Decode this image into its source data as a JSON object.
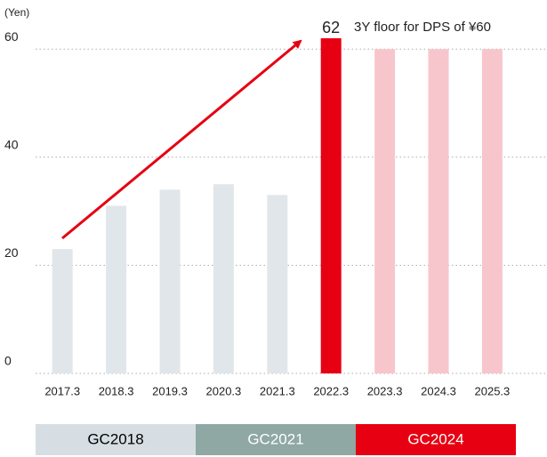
{
  "chart_data": {
    "type": "bar",
    "y_label": "(Yen)",
    "annotation": "3Y floor for DPS of ¥60",
    "categories": [
      "2017.3",
      "2018.3",
      "2019.3",
      "2020.3",
      "2021.3",
      "2022.3",
      "2023.3",
      "2024.3",
      "2025.3"
    ],
    "values": [
      23,
      31,
      34,
      35,
      33,
      62,
      60,
      60,
      60
    ],
    "colors": [
      "#e1e6ea",
      "#e1e6ea",
      "#e1e6ea",
      "#e1e6ea",
      "#e1e6ea",
      "#e60012",
      "#f7c6cc",
      "#f7c6cc",
      "#f7c6cc"
    ],
    "labeled_bar": 5,
    "ylim": [
      0,
      62.5
    ],
    "yticks": [
      0,
      20,
      40,
      60
    ],
    "grid": true,
    "phases": [
      {
        "label": "GC2018",
        "color": "#d6dee3",
        "text_color": "#000000"
      },
      {
        "label": "GC2021",
        "color": "#8fa8a4",
        "text_color": "#ffffff"
      },
      {
        "label": "GC2024",
        "color": "#e60012",
        "text_color": "#ffffff"
      }
    ]
  }
}
